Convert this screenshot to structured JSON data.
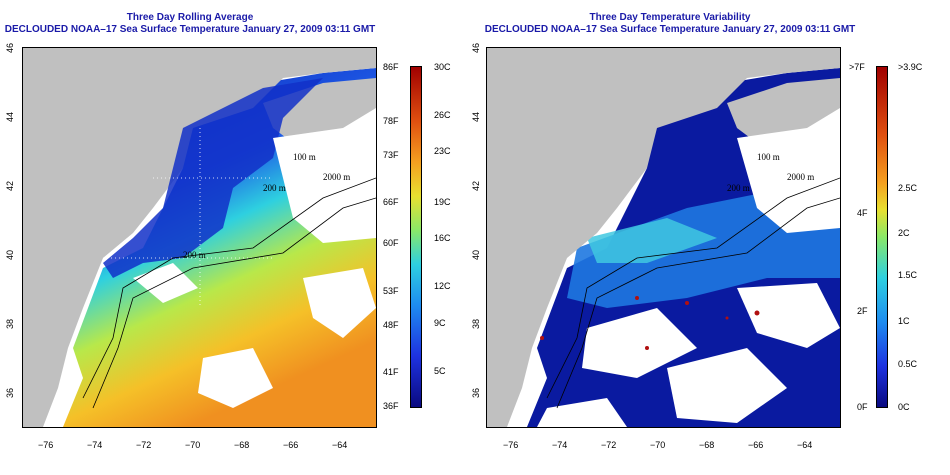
{
  "left_panel": {
    "title_line1": "Three Day Rolling Average",
    "title_line2": "DECLOUDED NOAA–17 Sea Surface Temperature January 27, 2009 03:11 GMT",
    "x_ticks": [
      "−76",
      "−74",
      "−72",
      "−70",
      "−68",
      "−66",
      "−64"
    ],
    "y_ticks": [
      "46",
      "44",
      "42",
      "40",
      "38",
      "36"
    ],
    "contour_labels": [
      "100 m",
      "200 m",
      "2000 m",
      "200 m"
    ],
    "colorbar_left": [
      "86F",
      "78F",
      "73F",
      "66F",
      "60F",
      "53F",
      "48F",
      "41F",
      "36F"
    ],
    "colorbar_right": [
      "30C",
      "26C",
      "23C",
      "19C",
      "16C",
      "12C",
      "9C",
      "5C"
    ]
  },
  "right_panel": {
    "title_line1": "Three Day Temperature Variability",
    "title_line2": "DECLOUDED NOAA–17 Sea Surface Temperature January 27, 2009 03:11 GMT",
    "x_ticks": [
      "−76",
      "−74",
      "−72",
      "−70",
      "−68",
      "−66",
      "−64"
    ],
    "y_ticks": [
      "46",
      "44",
      "42",
      "40",
      "38",
      "36"
    ],
    "contour_labels": [
      "100 m",
      "200 m",
      "2000 m"
    ],
    "colorbar_left": [
      ">7F",
      "4F",
      "2F",
      "0F"
    ],
    "colorbar_right": [
      ">3.9C",
      "2.5C",
      "2C",
      "1.5C",
      "1C",
      "0.5C",
      "0C"
    ]
  },
  "colors": {
    "title": "#1a1aa8",
    "land": "#c0c0c0",
    "cloud": "#ffffff",
    "sst_cold": "#0a1eb4",
    "sst_mid": "#2ed0e0",
    "sst_warm": "#f5a020",
    "variability_low": "#0a1496",
    "variability_mid": "#2ad0e8",
    "variability_high": "#b01010"
  }
}
